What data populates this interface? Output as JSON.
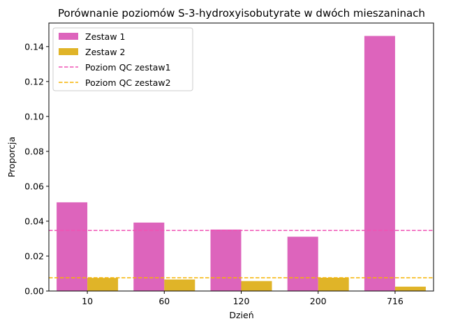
{
  "chart_data": {
    "type": "bar",
    "title": "Porównanie poziomów S-3-hydroxyisobutyrate w dwóch mieszaninach",
    "xlabel": "Dzień",
    "ylabel": "Proporcja",
    "categories": [
      "10",
      "60",
      "120",
      "200",
      "716"
    ],
    "series": [
      {
        "name": "Zestaw 1",
        "color": "#dd64bc",
        "values": [
          0.0508,
          0.0392,
          0.0352,
          0.0311,
          0.1461
        ]
      },
      {
        "name": "Zestaw 2",
        "color": "#e0b428",
        "values": [
          0.0075,
          0.0066,
          0.0057,
          0.0076,
          0.0025
        ]
      }
    ],
    "reference_lines": [
      {
        "name": "Poziom QC zestaw1",
        "value": 0.0347,
        "color": "#f052b4",
        "style": "dashed"
      },
      {
        "name": "Poziom QC zestaw2",
        "value": 0.0076,
        "color": "#f5b300",
        "style": "dashed"
      }
    ],
    "ylim": [
      0,
      0.1535
    ],
    "yticks": [
      "0.00",
      "0.02",
      "0.04",
      "0.06",
      "0.08",
      "0.10",
      "0.12",
      "0.14"
    ],
    "legend_position": "top-left",
    "grid": false
  }
}
